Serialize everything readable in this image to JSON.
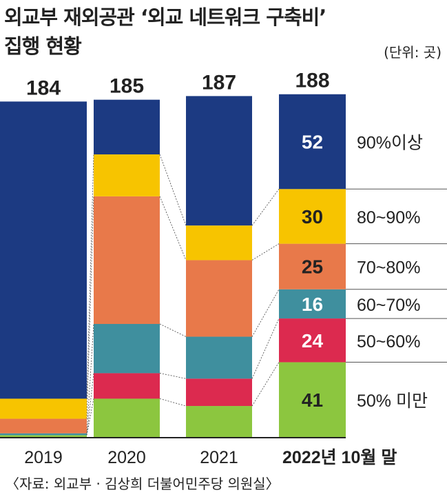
{
  "title_line1": "외교부 재외공관 ‘외교 네트워크 구축비’",
  "title_line2": "집행 현황",
  "unit": "(단위: 곳)",
  "source": "〈자료: 외교부 · 김상희 더불어민주당 의원실〉",
  "chart_data": {
    "type": "bar",
    "stacked": true,
    "categories": [
      "2019",
      "2020",
      "2021",
      "2022년 10월 말"
    ],
    "totals": [
      184,
      185,
      187,
      188
    ],
    "series": [
      {
        "name": "50% 미만",
        "color": "#8cc63f",
        "values": [
          1,
          21,
          17,
          41
        ]
      },
      {
        "name": "50~60%",
        "color": "#dc2a4f",
        "values": [
          0,
          14,
          15,
          24
        ]
      },
      {
        "name": "60~70%",
        "color": "#3f8f9e",
        "values": [
          1,
          27,
          23,
          16
        ]
      },
      {
        "name": "70~80%",
        "color": "#e8794a",
        "values": [
          8,
          70,
          42,
          25
        ]
      },
      {
        "name": "80~90%",
        "color": "#f7c400",
        "values": [
          11,
          23,
          19,
          30
        ]
      },
      {
        "name": "90%이상",
        "color": "#1c3a82",
        "values": [
          163,
          30,
          71,
          52
        ]
      }
    ],
    "labeled_category": "2022년 10월 말",
    "legend_placement": "right"
  }
}
